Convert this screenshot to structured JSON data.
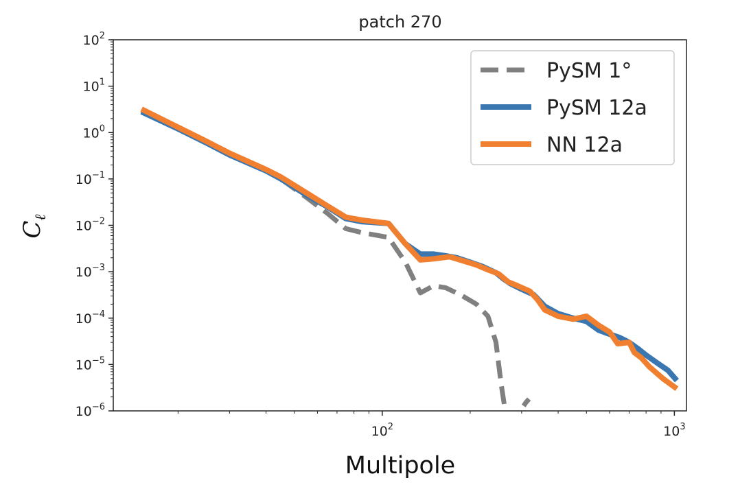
{
  "chart_data": {
    "type": "line",
    "title": "patch 270",
    "xlabel": "Multipole",
    "ylabel": "C",
    "ylabel_subscript": "ℓ",
    "xscale": "log",
    "yscale": "log",
    "xlim": [
      12,
      1100
    ],
    "ylim": [
      1e-06,
      100
    ],
    "grid": false,
    "legend_position": "top-right",
    "x_ticks": [
      {
        "value": 100,
        "base": "10",
        "exp": "2"
      },
      {
        "value": 1000,
        "base": "10",
        "exp": "3"
      }
    ],
    "y_ticks": [
      {
        "value": 100,
        "base": "10",
        "exp": "2"
      },
      {
        "value": 10,
        "base": "10",
        "exp": "1"
      },
      {
        "value": 1,
        "base": "10",
        "exp": "0"
      },
      {
        "value": 0.1,
        "base": "10",
        "exp": "−1"
      },
      {
        "value": 0.01,
        "base": "10",
        "exp": "−2"
      },
      {
        "value": 0.001,
        "base": "10",
        "exp": "−3"
      },
      {
        "value": 0.0001,
        "base": "10",
        "exp": "−4"
      },
      {
        "value": 1e-05,
        "base": "10",
        "exp": "−5"
      },
      {
        "value": 1e-06,
        "base": "10",
        "exp": "−6"
      }
    ],
    "series": [
      {
        "name": "PySM 1°",
        "color": "#808080",
        "style": "dashed",
        "x": [
          15,
          20,
          25,
          30,
          40,
          45,
          55,
          65,
          75,
          85,
          105,
          120,
          135,
          150,
          165,
          185,
          210,
          230,
          245,
          255,
          265,
          290,
          310,
          318
        ],
        "y": [
          3.0,
          1.2,
          0.6,
          0.33,
          0.15,
          0.1,
          0.04,
          0.018,
          0.0085,
          0.007,
          0.0055,
          0.0016,
          0.00035,
          0.0005,
          0.00045,
          0.00032,
          0.0002,
          0.00011,
          3e-05,
          4e-06,
          8e-07,
          8e-07,
          1.5e-06,
          1.8e-06
        ]
      },
      {
        "name": "PySM 12a",
        "color": "#3a76af",
        "style": "solid",
        "x": [
          15,
          20,
          25,
          30,
          40,
          45,
          55,
          65,
          75,
          85,
          105,
          120,
          135,
          150,
          165,
          180,
          200,
          220,
          245,
          260,
          275,
          300,
          330,
          360,
          400,
          450,
          500,
          550,
          600,
          650,
          700,
          750,
          800,
          870,
          950,
          1020
        ],
        "y": [
          2.8,
          1.2,
          0.6,
          0.33,
          0.15,
          0.1,
          0.045,
          0.025,
          0.014,
          0.012,
          0.011,
          0.004,
          0.0024,
          0.0024,
          0.0022,
          0.002,
          0.0016,
          0.0013,
          0.00095,
          0.0007,
          0.00055,
          0.00042,
          0.00032,
          0.00018,
          0.000125,
          0.0001,
          8.5e-05,
          5.5e-05,
          4.5e-05,
          3.8e-05,
          3e-05,
          2.2e-05,
          1.6e-05,
          1.1e-05,
          7.5e-06,
          4.5e-06
        ]
      },
      {
        "name": "NN 12a",
        "color": "#f08030",
        "style": "solid",
        "x": [
          15,
          20,
          25,
          30,
          40,
          45,
          55,
          65,
          75,
          85,
          105,
          120,
          135,
          150,
          170,
          190,
          210,
          230,
          250,
          270,
          290,
          320,
          340,
          360,
          400,
          450,
          500,
          550,
          600,
          640,
          700,
          730,
          770,
          820,
          870,
          920,
          1020
        ],
        "y": [
          3.2,
          1.3,
          0.65,
          0.36,
          0.16,
          0.11,
          0.05,
          0.026,
          0.015,
          0.013,
          0.011,
          0.004,
          0.0018,
          0.0019,
          0.0021,
          0.0017,
          0.0014,
          0.0011,
          0.0009,
          0.0006,
          0.0005,
          0.00038,
          0.00025,
          0.00015,
          0.00011,
          9.5e-05,
          0.00011,
          7e-05,
          5e-05,
          2.8e-05,
          3e-05,
          1.8e-05,
          1.4e-05,
          9e-06,
          6.5e-06,
          4.8e-06,
          3e-06
        ]
      }
    ]
  }
}
